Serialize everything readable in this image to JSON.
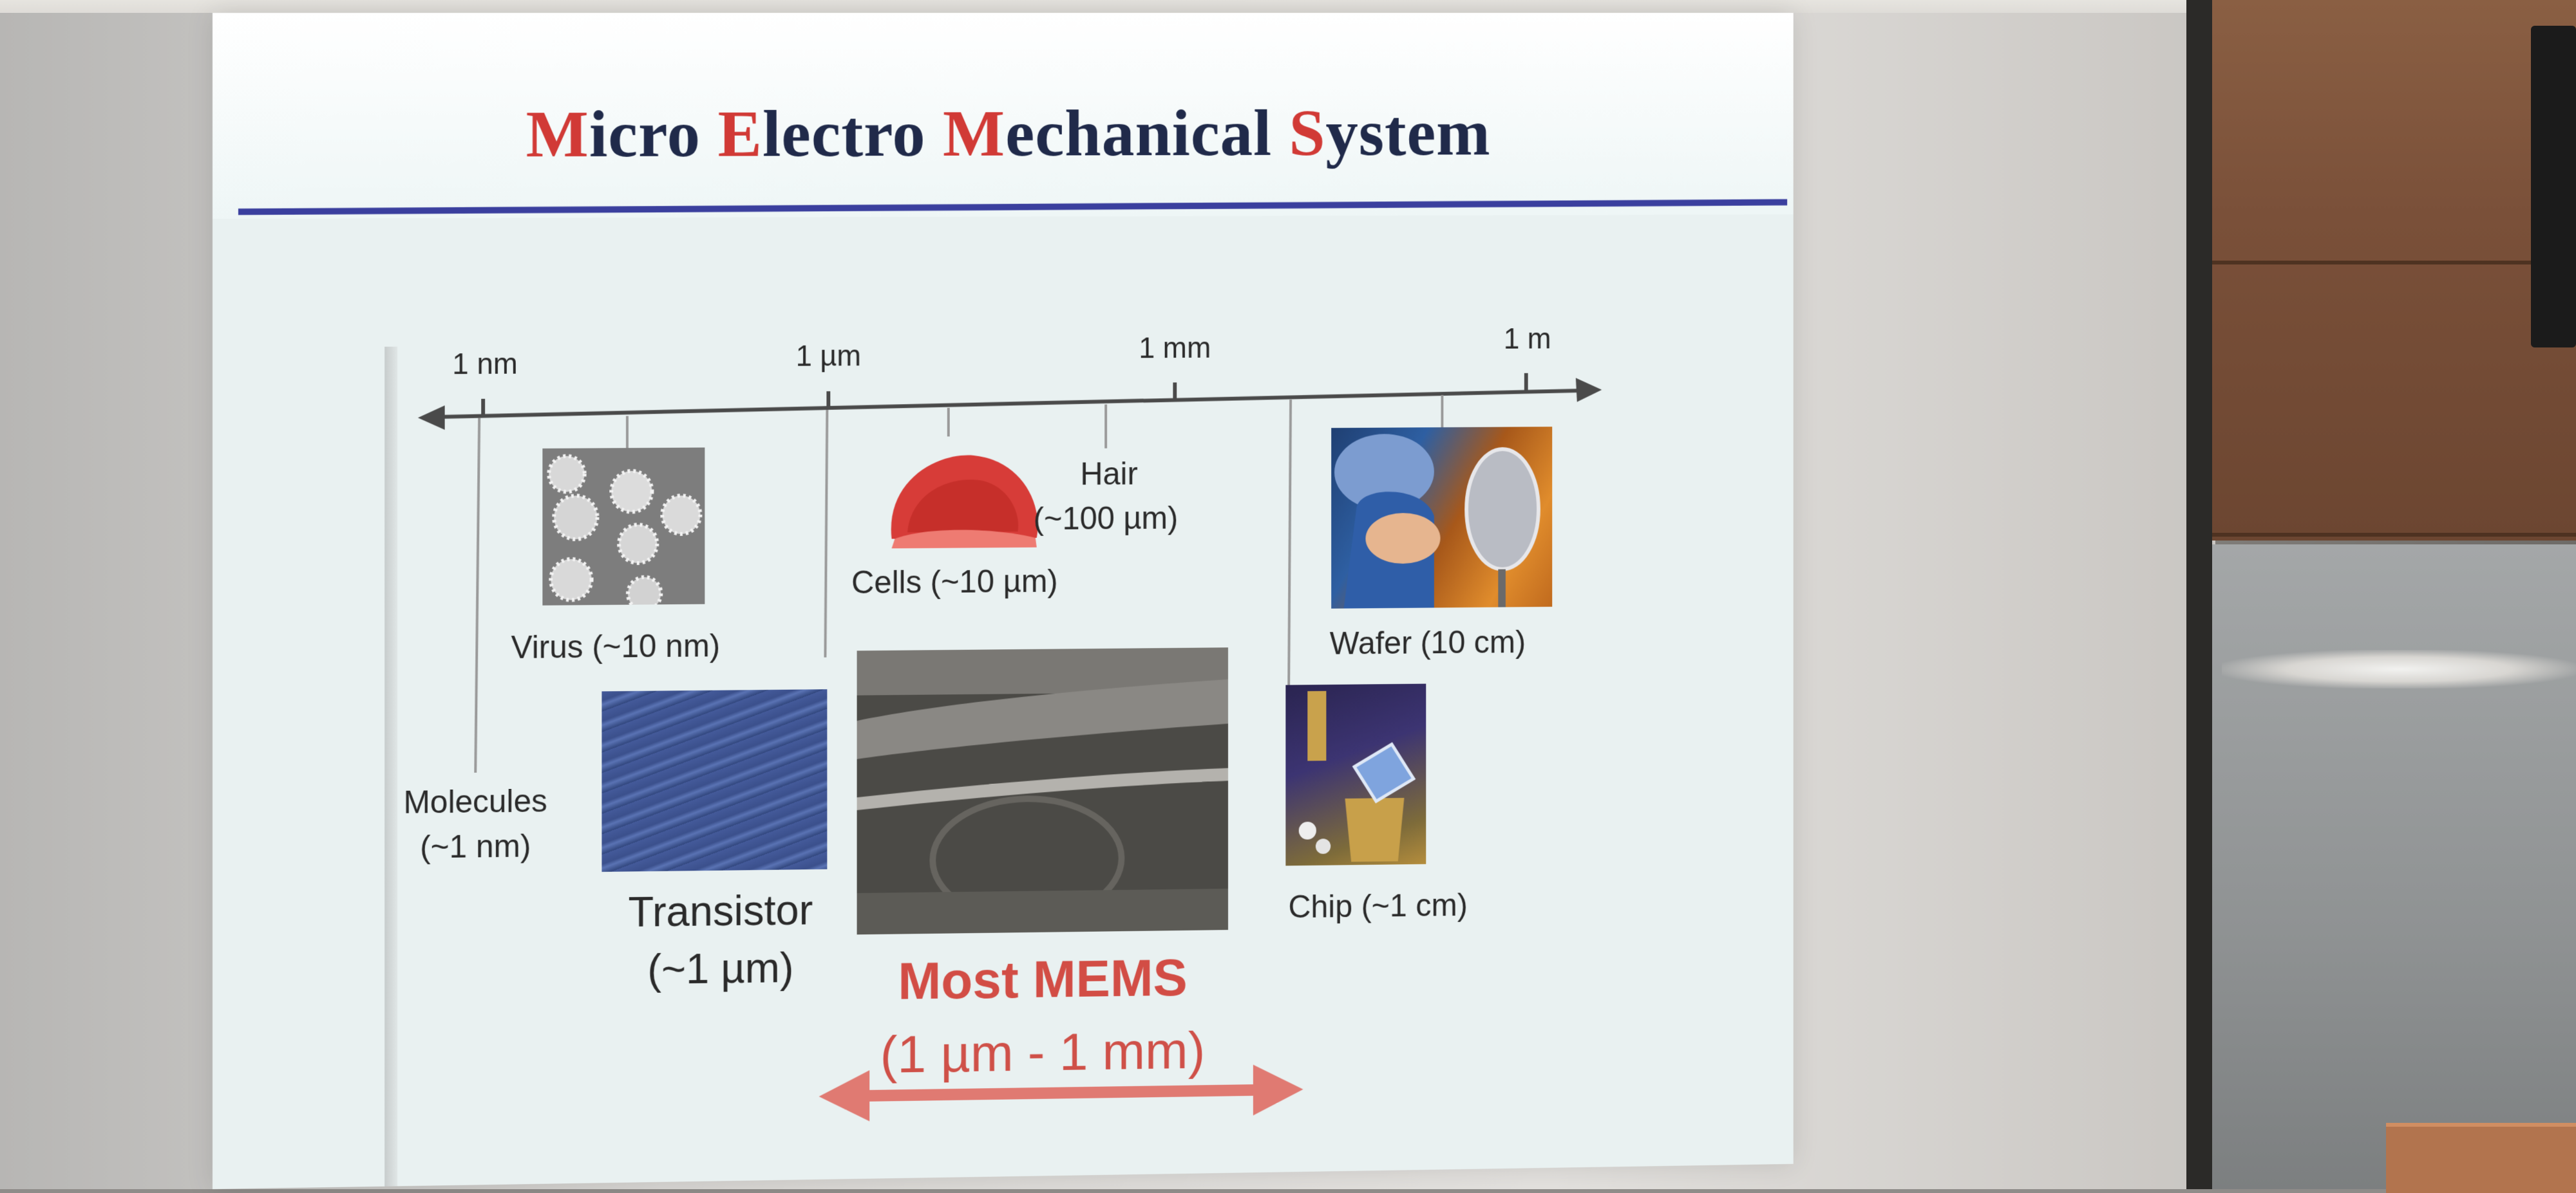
{
  "slide": {
    "title_parts": [
      {
        "text": "M",
        "accent": true
      },
      {
        "text": "icro ",
        "accent": false
      },
      {
        "text": "E",
        "accent": true
      },
      {
        "text": "lectro ",
        "accent": false
      },
      {
        "text": "M",
        "accent": true
      },
      {
        "text": "echanical ",
        "accent": false
      },
      {
        "text": "S",
        "accent": true
      },
      {
        "text": "ystem",
        "accent": false
      }
    ],
    "scale_ticks": [
      "1 nm",
      "1 µm",
      "1 mm",
      "1 m"
    ],
    "items": {
      "molecules": [
        "Molecules",
        "(~1 nm)"
      ],
      "virus": "Virus (~10 nm)",
      "transistor": [
        "Transistor",
        "(~1 µm)"
      ],
      "cells": "Cells (~10 µm)",
      "hair": [
        "Hair",
        "(~100 µm)"
      ],
      "wafer": "Wafer (10 cm)",
      "chip": "Chip (~1 cm)",
      "mems": [
        "Most MEMS",
        "(1 µm - 1 mm)"
      ]
    }
  },
  "colors": {
    "accent_red": "#d13a36",
    "title_blue": "#202a4a",
    "rule_blue": "#3a3f9e",
    "mems_red": "#d24d45",
    "arrow_pink": "#e07a72"
  }
}
